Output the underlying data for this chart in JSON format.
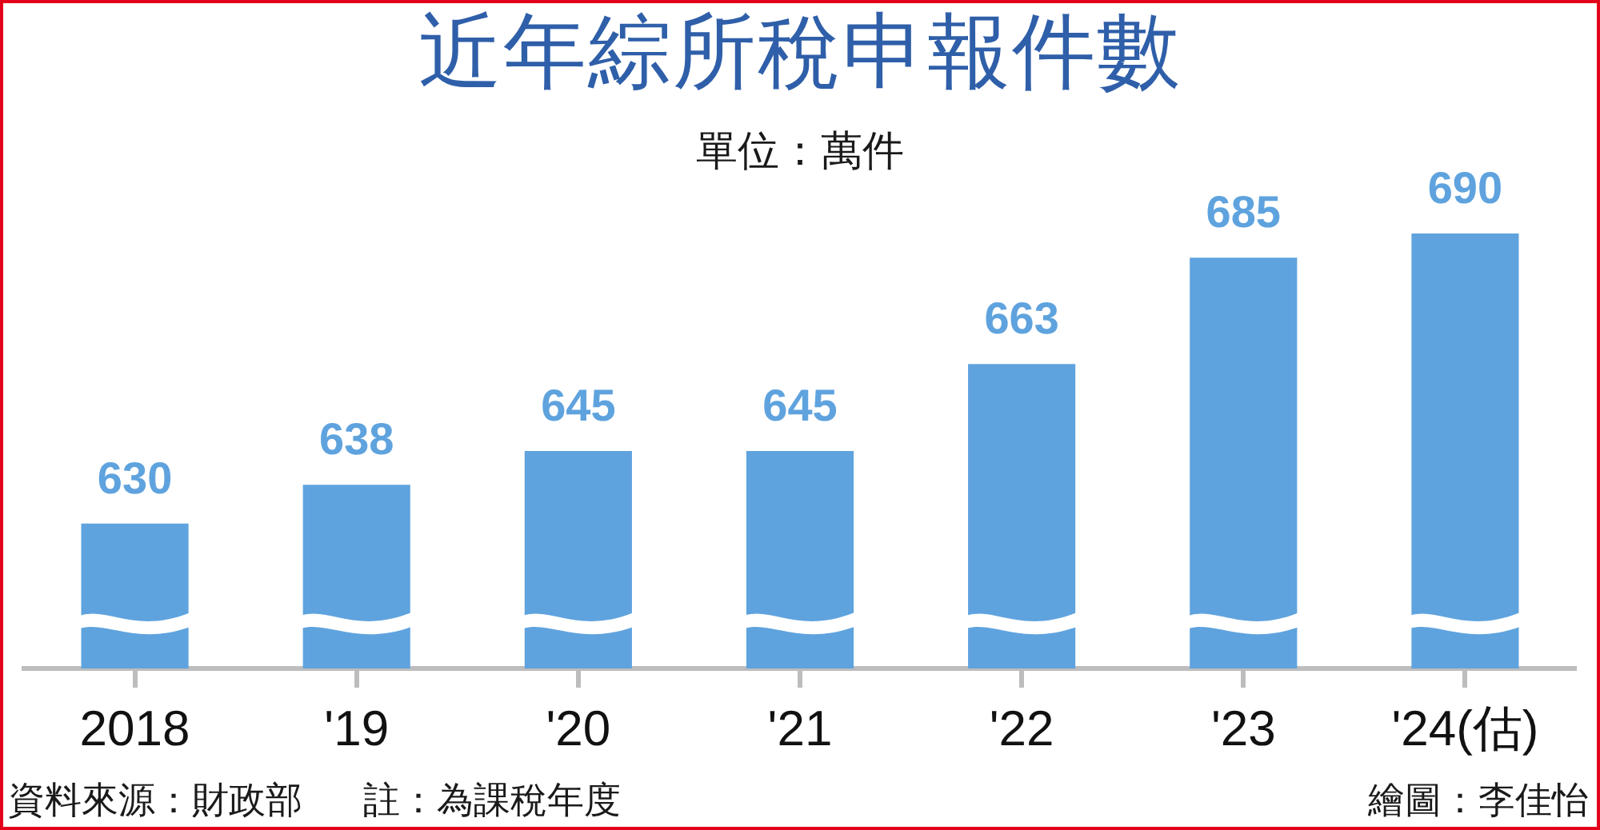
{
  "chart_data": {
    "type": "bar",
    "title": "近年綜所稅申報件數",
    "subtitle": "單位：萬件",
    "categories": [
      "2018",
      "'19",
      "'20",
      "'21",
      "'22",
      "'23",
      "'24(估)"
    ],
    "values": [
      630,
      638,
      645,
      645,
      663,
      685,
      690
    ],
    "color": "#5fa3de",
    "data_labels": true,
    "tick_labels": "x",
    "annotations": [
      "資料來源：財政部",
      "註：為課稅年度",
      "繪圖：李佳怡"
    ]
  }
}
